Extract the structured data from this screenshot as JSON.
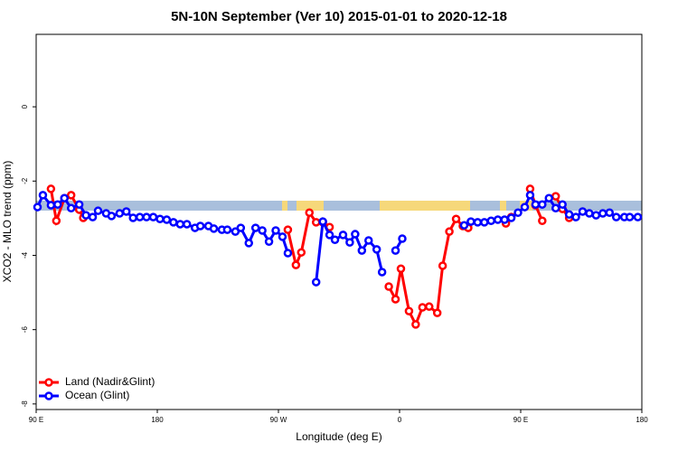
{
  "chart_data": {
    "type": "line",
    "title": "5N-10N September (Ver 10)   2015-01-01 to 2020-12-18",
    "x_label": "Longitude (deg E)",
    "y_label": "XCO2 - MLO trend (ppm)",
    "xlim": [
      90,
      540
    ],
    "xticks": [
      {
        "value": 90,
        "label": "90 E"
      },
      {
        "value": 180,
        "label": "180"
      },
      {
        "value": 270,
        "label": "90 W"
      },
      {
        "value": 360,
        "label": "0"
      },
      {
        "value": 450,
        "label": "90 E"
      },
      {
        "value": 540,
        "label": "180"
      }
    ],
    "ylim": [
      -8.15,
      1.95
    ],
    "yticks": [
      0,
      -2,
      -4,
      -6,
      -8
    ],
    "legend": "bottom-left",
    "series": [
      {
        "name": "Land (Nadir&Glint)",
        "color": "#ff0000",
        "x": [
          101,
          105,
          111,
          116,
          122,
          125,
          null,
          277,
          283,
          287,
          293,
          298,
          303,
          308,
          null,
          352,
          357,
          361,
          367,
          372,
          377,
          382,
          388,
          392,
          397,
          402,
          407,
          411,
          null,
          439,
          443,
          null,
          457,
          461,
          466,
          null,
          476,
          481,
          486
        ],
        "values": [
          -2.21,
          -3.07,
          -2.46,
          -2.38,
          -2.77,
          -2.99,
          null,
          -3.31,
          -4.26,
          -3.92,
          -2.85,
          -3.11,
          -3.11,
          -3.24,
          null,
          -4.84,
          -5.18,
          -4.36,
          -5.5,
          -5.86,
          -5.4,
          -5.38,
          -5.55,
          -4.28,
          -3.36,
          -3.02,
          -3.21,
          -3.26,
          null,
          -3.14,
          -2.97,
          null,
          -2.21,
          -2.65,
          -3.07,
          null,
          -2.41,
          -2.75,
          -2.99
        ]
      },
      {
        "name": "Ocean (Glint)",
        "color": "#0000ff",
        "x": [
          91,
          95,
          101,
          106,
          111,
          116,
          122,
          127,
          132,
          136,
          142,
          146,
          152,
          157,
          162,
          167,
          172,
          177,
          182,
          187,
          192,
          197,
          202,
          208,
          212,
          218,
          222,
          228,
          232,
          238,
          242,
          248,
          253,
          258,
          263,
          268,
          273,
          277,
          281,
          null,
          298,
          303,
          308,
          312,
          318,
          323,
          327,
          332,
          337,
          343,
          347,
          null,
          357,
          362,
          null,
          408,
          413,
          418,
          423,
          428,
          433,
          438,
          443,
          448,
          453,
          457,
          461,
          466,
          471,
          476,
          481,
          486,
          491,
          496,
          501,
          506,
          511,
          516,
          521,
          527,
          531,
          537
        ],
        "values": [
          -2.7,
          -2.38,
          -2.65,
          -2.63,
          -2.46,
          -2.73,
          -2.63,
          -2.92,
          -2.97,
          -2.8,
          -2.87,
          -2.94,
          -2.87,
          -2.82,
          -2.99,
          -2.97,
          -2.97,
          -2.97,
          -3.02,
          -3.04,
          -3.11,
          -3.16,
          -3.16,
          -3.26,
          -3.21,
          -3.21,
          -3.28,
          -3.31,
          -3.31,
          -3.36,
          -3.26,
          -3.67,
          -3.26,
          -3.33,
          -3.63,
          -3.33,
          -3.5,
          -3.94,
          null,
          null,
          -4.72,
          -3.09,
          -3.45,
          -3.58,
          -3.45,
          -3.65,
          -3.43,
          -3.87,
          -3.6,
          -3.84,
          -4.45,
          null,
          -3.87,
          -3.55,
          null,
          -3.19,
          -3.09,
          -3.11,
          -3.11,
          -3.07,
          -3.04,
          -3.04,
          -2.99,
          -2.85,
          -2.7,
          -2.38,
          -2.63,
          -2.63,
          -2.46,
          -2.73,
          -2.63,
          -2.9,
          -2.97,
          -2.82,
          -2.87,
          -2.92,
          -2.87,
          -2.85,
          -2.97,
          -2.97,
          -2.97,
          -2.97
        ]
      }
    ]
  }
}
